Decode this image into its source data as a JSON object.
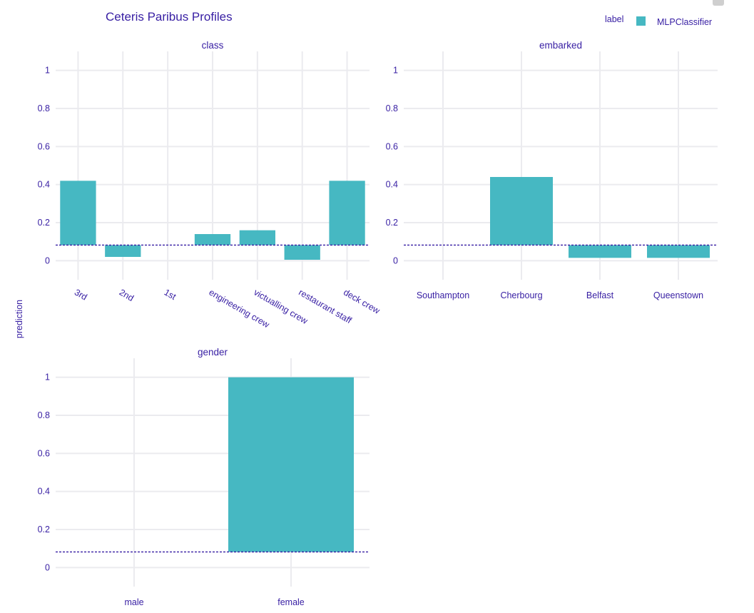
{
  "title": "Ceteris Paribus Profiles",
  "ylabel": "prediction",
  "legend": {
    "title": "label",
    "items": [
      {
        "name": "MLPClassifier",
        "color": "#46b8c2"
      }
    ]
  },
  "colors": {
    "text": "#371ea3",
    "grid": "#f0f0f4",
    "bar": "#46b8c2",
    "baseline": "#371ea3"
  },
  "chart_data": [
    {
      "type": "bar",
      "facet": "class",
      "categories": [
        "3rd",
        "2nd",
        "1st",
        "engineering crew",
        "victualling crew",
        "restaurant staff",
        "deck crew"
      ],
      "base": 0.082,
      "values": [
        0.42,
        0.02,
        0.082,
        0.14,
        0.16,
        0.005,
        0.42
      ],
      "ylim": [
        -0.1,
        1.1
      ],
      "yticks": [
        0,
        0.2,
        0.4,
        0.6,
        0.8,
        1
      ],
      "tick_angle": 30
    },
    {
      "type": "bar",
      "facet": "embarked",
      "categories": [
        "Southampton",
        "Cherbourg",
        "Belfast",
        "Queenstown"
      ],
      "base": 0.082,
      "values": [
        0.082,
        0.44,
        0.015,
        0.015
      ],
      "ylim": [
        -0.1,
        1.1
      ],
      "yticks": [
        0,
        0.2,
        0.4,
        0.6,
        0.8,
        1
      ],
      "tick_angle": 0
    },
    {
      "type": "bar",
      "facet": "gender",
      "categories": [
        "male",
        "female"
      ],
      "base": 0.082,
      "values": [
        0.082,
        1.0
      ],
      "ylim": [
        -0.1,
        1.1
      ],
      "yticks": [
        0,
        0.2,
        0.4,
        0.6,
        0.8,
        1
      ],
      "tick_angle": 0
    }
  ]
}
